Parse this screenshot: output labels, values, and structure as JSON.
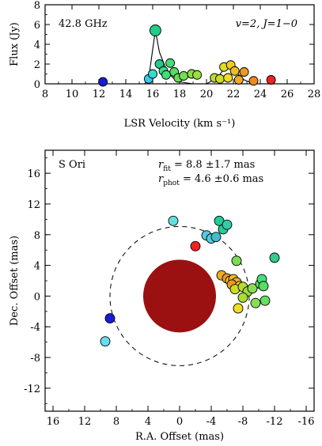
{
  "chart_data": [
    {
      "type": "scatter",
      "xlabel": "LSR Velocity (km s⁻¹)",
      "ylabel": "Flux (Jy)",
      "xlim": [
        8,
        28
      ],
      "ylim": [
        0,
        8
      ],
      "xticks": [
        "8",
        "10",
        "12",
        "14",
        "16",
        "18",
        "20",
        "22",
        "24",
        "26",
        "28"
      ],
      "yticks": [
        "0",
        "2",
        "4",
        "6",
        "8"
      ],
      "annotations": {
        "left": "42.8 GHz",
        "right": "v=2, J=1−0"
      },
      "spectrum_line": [
        [
          8,
          0
        ],
        [
          15.4,
          0
        ],
        [
          15.7,
          0.5
        ],
        [
          16.0,
          3.5
        ],
        [
          16.2,
          5.4
        ],
        [
          16.5,
          3.2
        ],
        [
          17.0,
          1.5
        ],
        [
          17.5,
          0.6
        ],
        [
          18.0,
          0.2
        ],
        [
          19.0,
          0
        ],
        [
          20.0,
          0
        ],
        [
          20.8,
          0.6
        ],
        [
          21.3,
          1.5
        ],
        [
          21.7,
          1.9
        ],
        [
          22.2,
          1.2
        ],
        [
          22.8,
          0.4
        ],
        [
          23.5,
          0
        ],
        [
          28,
          0
        ]
      ],
      "points": [
        {
          "v": 12.3,
          "f": 0.2,
          "c": "#1a1ad8"
        },
        {
          "v": 15.7,
          "f": 0.5,
          "c": "#33ccee"
        },
        {
          "v": 16.0,
          "f": 1.0,
          "c": "#33ddcc"
        },
        {
          "v": 16.2,
          "f": 5.4,
          "c": "#22cc88"
        },
        {
          "v": 16.5,
          "f": 2.0,
          "c": "#22cc88"
        },
        {
          "v": 16.8,
          "f": 1.3,
          "c": "#33dd88"
        },
        {
          "v": 17.0,
          "f": 0.9,
          "c": "#44dd77"
        },
        {
          "v": 17.3,
          "f": 2.1,
          "c": "#44dd77"
        },
        {
          "v": 17.6,
          "f": 1.2,
          "c": "#55dd66"
        },
        {
          "v": 17.9,
          "f": 0.6,
          "c": "#66dd55"
        },
        {
          "v": 18.3,
          "f": 0.8,
          "c": "#77dd55"
        },
        {
          "v": 18.9,
          "f": 1.0,
          "c": "#88dd44"
        },
        {
          "v": 19.3,
          "f": 0.9,
          "c": "#99dd44"
        },
        {
          "v": 20.6,
          "f": 0.6,
          "c": "#bbdd33"
        },
        {
          "v": 21.0,
          "f": 0.5,
          "c": "#ccdd22"
        },
        {
          "v": 21.3,
          "f": 1.7,
          "c": "#dddd22"
        },
        {
          "v": 21.6,
          "f": 0.6,
          "c": "#eedd22"
        },
        {
          "v": 21.8,
          "f": 1.9,
          "c": "#eecc22"
        },
        {
          "v": 22.1,
          "f": 1.3,
          "c": "#eebb22"
        },
        {
          "v": 22.4,
          "f": 0.4,
          "c": "#eeaa22"
        },
        {
          "v": 22.8,
          "f": 1.2,
          "c": "#ee9922"
        },
        {
          "v": 23.5,
          "f": 0.3,
          "c": "#ee8822"
        },
        {
          "v": 24.8,
          "f": 0.4,
          "c": "#ee2222"
        }
      ]
    },
    {
      "type": "scatter",
      "xlabel": "R.A. Offset (mas)",
      "ylabel": "Dec. Offset (mas)",
      "xlim": [
        17,
        -17
      ],
      "ylim": [
        -15,
        19
      ],
      "xticks": [
        "16",
        "12",
        "8",
        "4",
        "0",
        "-4",
        "-8",
        "-12",
        "-16"
      ],
      "yticks": [
        "16",
        "12",
        "8",
        "4",
        "0",
        "-4",
        "-8",
        "-12"
      ],
      "annotations": {
        "source": "S Ori",
        "t_label": "r",
        "t_sub": "fit",
        "t_text": " = 8.8 ±1.7 mas",
        "r_label": "r",
        "r_sub": "phot",
        "r_text": " = 4.6 ±0.6 mas"
      },
      "star_radius": 4.6,
      "ring_radius": 8.8,
      "star_color": "#9b1010",
      "points": [
        {
          "x": 0.8,
          "y": 9.8,
          "c": "#66dddd"
        },
        {
          "x": 8.8,
          "y": -2.9,
          "c": "#1a1ad8"
        },
        {
          "x": 9.4,
          "y": -5.9,
          "c": "#66ddee"
        },
        {
          "x": -2.0,
          "y": 6.5,
          "c": "#ee2222"
        },
        {
          "x": -5.0,
          "y": 9.8,
          "c": "#22cc99"
        },
        {
          "x": -5.5,
          "y": 8.7,
          "c": "#22cc99"
        },
        {
          "x": -6.0,
          "y": 9.3,
          "c": "#33ccaa"
        },
        {
          "x": -3.4,
          "y": 7.9,
          "c": "#55ccdd"
        },
        {
          "x": -4.0,
          "y": 7.5,
          "c": "#55ccdd"
        },
        {
          "x": -4.6,
          "y": 7.7,
          "c": "#44bbcc"
        },
        {
          "x": -7.2,
          "y": 4.6,
          "c": "#77dd55"
        },
        {
          "x": -12.0,
          "y": 5.0,
          "c": "#33cc88"
        },
        {
          "x": -5.3,
          "y": 2.7,
          "c": "#eeaa22"
        },
        {
          "x": -6.0,
          "y": 2.3,
          "c": "#ee9922"
        },
        {
          "x": -6.4,
          "y": 2.0,
          "c": "#eecc22"
        },
        {
          "x": -6.8,
          "y": 2.2,
          "c": "#eebb22"
        },
        {
          "x": -7.2,
          "y": 1.8,
          "c": "#eeaa33"
        },
        {
          "x": -6.6,
          "y": 1.5,
          "c": "#ee9922"
        },
        {
          "x": -7.6,
          "y": 1.3,
          "c": "#dddd22"
        },
        {
          "x": -7.0,
          "y": 0.9,
          "c": "#ccdd22"
        },
        {
          "x": -8.0,
          "y": 1.2,
          "c": "#bbdd33"
        },
        {
          "x": -8.6,
          "y": 0.6,
          "c": "#99dd44"
        },
        {
          "x": -9.2,
          "y": 1.0,
          "c": "#88dd55"
        },
        {
          "x": -10.2,
          "y": 1.6,
          "c": "#66dd66"
        },
        {
          "x": -10.4,
          "y": 2.2,
          "c": "#44dd77"
        },
        {
          "x": -10.6,
          "y": 1.3,
          "c": "#55dd66"
        },
        {
          "x": -9.6,
          "y": -0.9,
          "c": "#88dd55"
        },
        {
          "x": -8.0,
          "y": -0.2,
          "c": "#aadd33"
        },
        {
          "x": -7.4,
          "y": -1.6,
          "c": "#eedd22"
        },
        {
          "x": -10.8,
          "y": -0.6,
          "c": "#66dd66"
        }
      ]
    }
  ]
}
